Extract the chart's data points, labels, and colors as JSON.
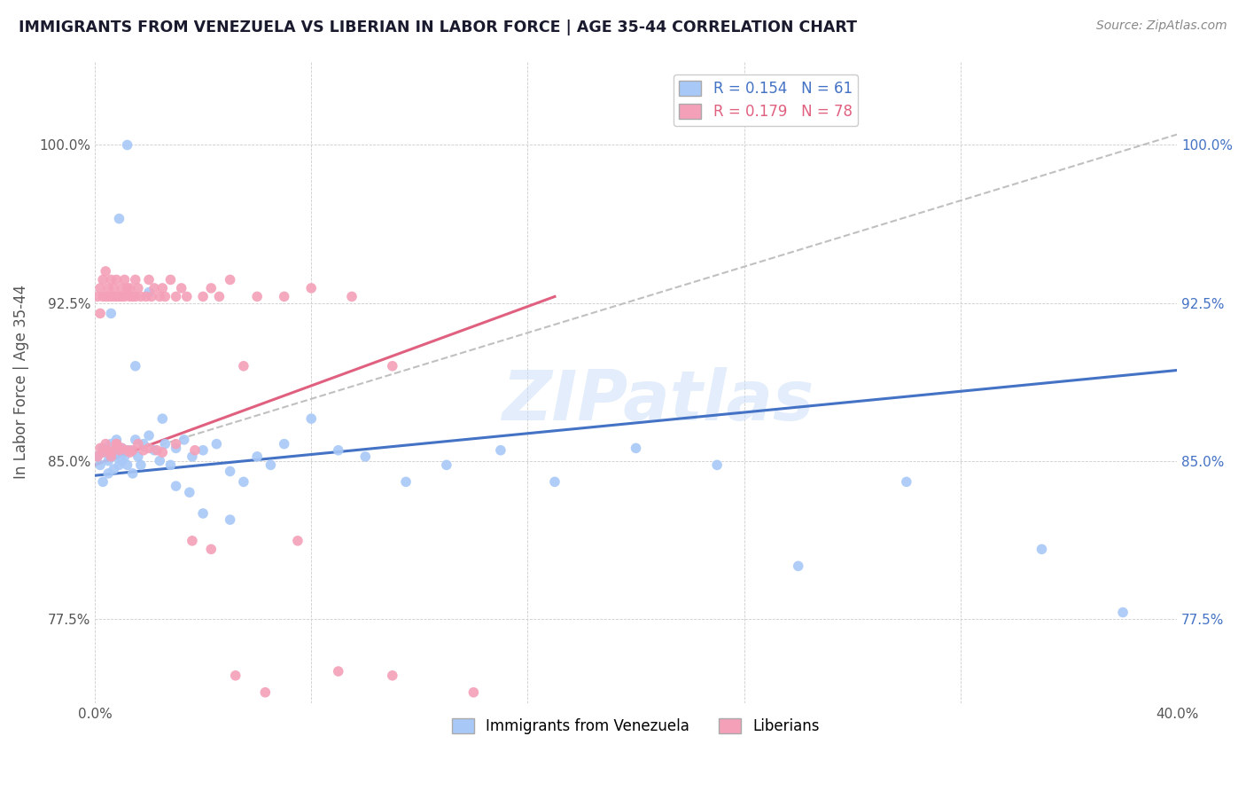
{
  "title": "IMMIGRANTS FROM VENEZUELA VS LIBERIAN IN LABOR FORCE | AGE 35-44 CORRELATION CHART",
  "source_text": "Source: ZipAtlas.com",
  "ylabel": "In Labor Force | Age 35-44",
  "xlim": [
    0.0,
    0.4
  ],
  "ylim": [
    0.735,
    1.04
  ],
  "yticks": [
    0.775,
    0.85,
    0.925,
    1.0
  ],
  "ytick_labels_left": [
    "77.5%",
    "85.0%",
    "92.5%",
    "100.0%"
  ],
  "ytick_labels_right": [
    "77.5%",
    "85.0%",
    "92.5%",
    "100.0%"
  ],
  "xticks": [
    0.0,
    0.08,
    0.16,
    0.24,
    0.32,
    0.4
  ],
  "xtick_labels": [
    "0.0%",
    "",
    "",
    "",
    "",
    "40.0%"
  ],
  "legend_r1": "R = 0.154",
  "legend_n1": "N = 61",
  "legend_r2": "R = 0.179",
  "legend_n2": "N = 78",
  "color_venezuela": "#a8c8f8",
  "color_liberian": "#f4a0b8",
  "color_venezuela_line": "#4472c4",
  "color_liberian_line": "#e06080",
  "color_diagonal": "#c0c0c0",
  "watermark": "ZIPatlas",
  "venezuela_x": [
    0.001,
    0.002,
    0.003,
    0.003,
    0.004,
    0.005,
    0.005,
    0.006,
    0.007,
    0.007,
    0.008,
    0.008,
    0.009,
    0.01,
    0.01,
    0.011,
    0.012,
    0.013,
    0.014,
    0.015,
    0.016,
    0.017,
    0.018,
    0.02,
    0.022,
    0.024,
    0.026,
    0.028,
    0.03,
    0.033,
    0.036,
    0.04,
    0.045,
    0.05,
    0.055,
    0.06,
    0.065,
    0.07,
    0.08,
    0.09,
    0.1,
    0.115,
    0.13,
    0.15,
    0.17,
    0.2,
    0.23,
    0.26,
    0.3,
    0.35,
    0.006,
    0.009,
    0.012,
    0.015,
    0.02,
    0.025,
    0.03,
    0.035,
    0.04,
    0.05,
    0.38
  ],
  "venezuela_y": [
    0.852,
    0.848,
    0.856,
    0.84,
    0.854,
    0.85,
    0.844,
    0.858,
    0.852,
    0.846,
    0.854,
    0.86,
    0.848,
    0.856,
    0.85,
    0.852,
    0.848,
    0.855,
    0.844,
    0.86,
    0.852,
    0.848,
    0.858,
    0.862,
    0.855,
    0.85,
    0.858,
    0.848,
    0.856,
    0.86,
    0.852,
    0.855,
    0.858,
    0.845,
    0.84,
    0.852,
    0.848,
    0.858,
    0.87,
    0.855,
    0.852,
    0.84,
    0.848,
    0.855,
    0.84,
    0.856,
    0.848,
    0.8,
    0.84,
    0.808,
    0.92,
    0.965,
    1.0,
    0.895,
    0.93,
    0.87,
    0.838,
    0.835,
    0.825,
    0.822,
    0.778
  ],
  "liberian_x": [
    0.001,
    0.001,
    0.002,
    0.002,
    0.003,
    0.003,
    0.003,
    0.004,
    0.004,
    0.005,
    0.005,
    0.005,
    0.006,
    0.006,
    0.006,
    0.007,
    0.007,
    0.008,
    0.008,
    0.008,
    0.009,
    0.009,
    0.01,
    0.01,
    0.011,
    0.011,
    0.012,
    0.012,
    0.013,
    0.013,
    0.014,
    0.014,
    0.015,
    0.015,
    0.016,
    0.017,
    0.018,
    0.019,
    0.02,
    0.021,
    0.022,
    0.023,
    0.024,
    0.025,
    0.026,
    0.028,
    0.03,
    0.032,
    0.034,
    0.037,
    0.04,
    0.043,
    0.046,
    0.05,
    0.055,
    0.06,
    0.07,
    0.08,
    0.095,
    0.11,
    0.002,
    0.004,
    0.006,
    0.008,
    0.01,
    0.013,
    0.016,
    0.02,
    0.025,
    0.03,
    0.036,
    0.043,
    0.052,
    0.063,
    0.075,
    0.09,
    0.11,
    0.14
  ],
  "liberian_y": [
    0.928,
    0.852,
    0.932,
    0.92,
    0.936,
    0.928,
    0.854,
    0.94,
    0.928,
    0.932,
    0.928,
    0.855,
    0.936,
    0.928,
    0.852,
    0.932,
    0.928,
    0.936,
    0.928,
    0.858,
    0.928,
    0.855,
    0.932,
    0.928,
    0.936,
    0.928,
    0.932,
    0.855,
    0.928,
    0.932,
    0.928,
    0.855,
    0.936,
    0.928,
    0.932,
    0.928,
    0.855,
    0.928,
    0.936,
    0.928,
    0.932,
    0.855,
    0.928,
    0.932,
    0.928,
    0.936,
    0.928,
    0.932,
    0.928,
    0.855,
    0.928,
    0.932,
    0.928,
    0.936,
    0.895,
    0.928,
    0.928,
    0.932,
    0.928,
    0.895,
    0.856,
    0.858,
    0.854,
    0.858,
    0.856,
    0.854,
    0.858,
    0.856,
    0.854,
    0.858,
    0.812,
    0.808,
    0.748,
    0.74,
    0.812,
    0.75,
    0.748,
    0.74
  ],
  "ven_line_x0": 0.0,
  "ven_line_x1": 0.4,
  "ven_line_y0": 0.843,
  "ven_line_y1": 0.893,
  "lib_line_x0": 0.0,
  "lib_line_x1": 0.17,
  "lib_line_y0": 0.848,
  "lib_line_y1": 0.928,
  "diag_line_x0": 0.0,
  "diag_line_x1": 0.4,
  "diag_line_y0": 0.848,
  "diag_line_y1": 1.005
}
